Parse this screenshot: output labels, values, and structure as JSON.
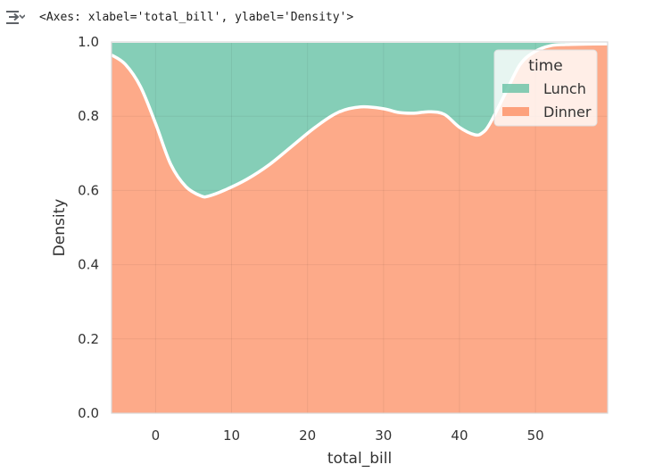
{
  "cell_output": {
    "text": "<Axes: xlabel='total_bill', ylabel='Density'>",
    "icon": "output-arrow-icon"
  },
  "colors": {
    "lunch": "#66c2a5",
    "dinner": "#fc8d62",
    "grid": "#e6e6e6",
    "frame": "#d9d9d9",
    "text": "#333333"
  },
  "chart_data": {
    "type": "area",
    "stacked": true,
    "normalized": true,
    "xlabel": "total_bill",
    "ylabel": "Density",
    "xlim": [
      -5.8,
      59.5
    ],
    "ylim": [
      0,
      1
    ],
    "xticks": [
      0,
      10,
      20,
      30,
      40,
      50
    ],
    "yticks": [
      0.0,
      0.2,
      0.4,
      0.6,
      0.8,
      1.0
    ],
    "xtick_labels": [
      "0",
      "10",
      "20",
      "30",
      "40",
      "50"
    ],
    "ytick_labels": [
      "0.0",
      "0.2",
      "0.4",
      "0.6",
      "0.8",
      "1.0"
    ],
    "grid": true,
    "legend": {
      "title": "time",
      "position": "top-right",
      "entries": [
        "Lunch",
        "Dinner"
      ]
    },
    "x": [
      -5.8,
      -4,
      -2,
      0,
      2,
      4,
      6,
      7,
      9,
      12,
      15,
      18,
      21,
      24,
      27,
      30,
      32,
      34,
      36,
      38,
      40,
      42,
      43,
      44,
      46,
      48,
      50,
      52,
      54,
      56,
      59.5
    ],
    "series": [
      {
        "name": "Dinner",
        "values": [
          0.965,
          0.94,
          0.88,
          0.78,
          0.67,
          0.61,
          0.585,
          0.585,
          0.6,
          0.63,
          0.67,
          0.72,
          0.77,
          0.81,
          0.825,
          0.82,
          0.81,
          0.808,
          0.812,
          0.805,
          0.77,
          0.75,
          0.755,
          0.78,
          0.86,
          0.94,
          0.975,
          0.99,
          0.993,
          0.994,
          0.995
        ]
      },
      {
        "name": "Lunch",
        "values": [
          0.035,
          0.06,
          0.12,
          0.22,
          0.33,
          0.39,
          0.415,
          0.415,
          0.4,
          0.37,
          0.33,
          0.28,
          0.23,
          0.19,
          0.175,
          0.18,
          0.19,
          0.192,
          0.188,
          0.195,
          0.23,
          0.25,
          0.245,
          0.22,
          0.14,
          0.06,
          0.025,
          0.01,
          0.007,
          0.006,
          0.005
        ]
      }
    ]
  }
}
